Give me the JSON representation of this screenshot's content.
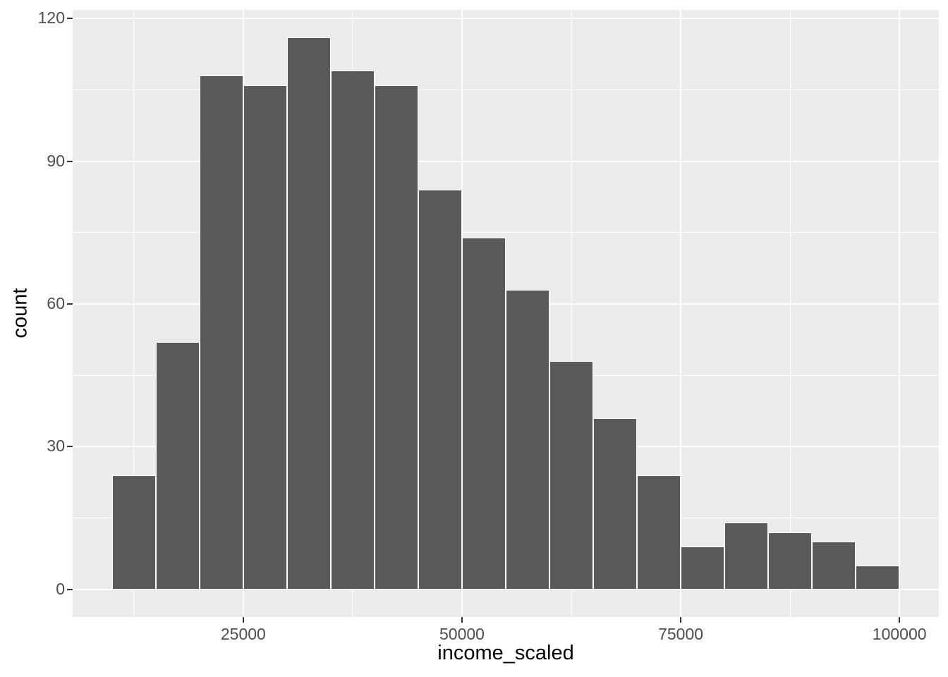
{
  "chart_data": {
    "type": "bar",
    "subtype": "histogram",
    "title": "",
    "xlabel": "income_scaled",
    "ylabel": "count",
    "bin_start": 10000,
    "bin_width": 5000,
    "bin_edges": [
      10000,
      15000,
      20000,
      25000,
      30000,
      35000,
      40000,
      45000,
      50000,
      55000,
      60000,
      65000,
      70000,
      75000,
      80000,
      85000,
      90000,
      95000,
      100000
    ],
    "counts": [
      24,
      52,
      108,
      106,
      116,
      109,
      106,
      84,
      74,
      63,
      48,
      36,
      24,
      9,
      14,
      12,
      10,
      5
    ],
    "x_tick_values": [
      25000,
      50000,
      75000,
      100000
    ],
    "x_tick_labels": [
      "25000",
      "50000",
      "75000",
      "100000"
    ],
    "y_tick_values": [
      0,
      30,
      60,
      90,
      120
    ],
    "y_tick_labels": [
      "0",
      "30",
      "60",
      "90",
      "120"
    ],
    "x_minor_gridlines": [
      12500,
      37500,
      62500,
      87500
    ],
    "y_minor_gridlines": [
      15,
      45,
      75,
      105
    ],
    "xlim": [
      5500,
      104500
    ],
    "ylim": [
      -5.8,
      121.8
    ],
    "grid": "major and minor, white lines on grey panel",
    "legend_position": "none",
    "colors": {
      "panel_background": "#EBEBEB",
      "figure_background": "#FFFFFF",
      "bar_fill": "#595959",
      "bar_stroke": "#FFFFFF",
      "gridline": "#FFFFFF",
      "tick_label": "#4D4D4D",
      "axis_title": "#000000",
      "tick_mark": "#333333"
    }
  }
}
